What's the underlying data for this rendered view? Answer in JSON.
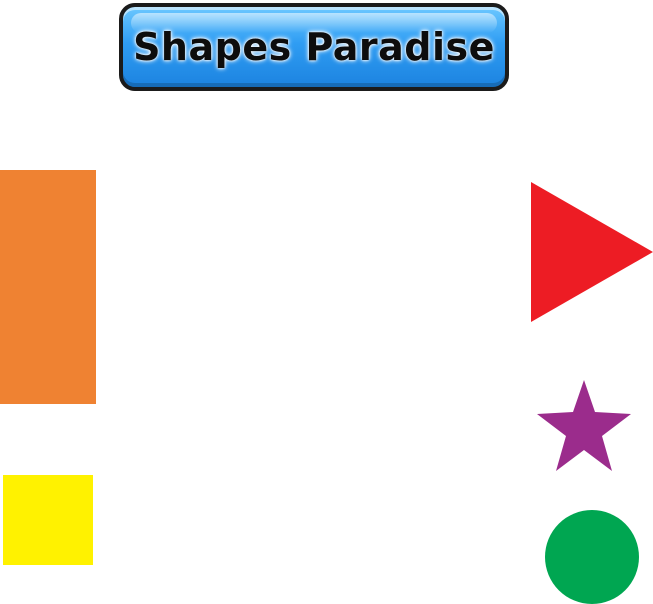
{
  "title": "Shapes Paradise",
  "shapes": [
    {
      "id": "rectangle",
      "color": "#ef8232"
    },
    {
      "id": "square",
      "color": "#fff200"
    },
    {
      "id": "triangle",
      "color": "#ed1c24"
    },
    {
      "id": "star",
      "color": "#9b2c8c"
    },
    {
      "id": "circle",
      "color": "#00a651"
    }
  ]
}
